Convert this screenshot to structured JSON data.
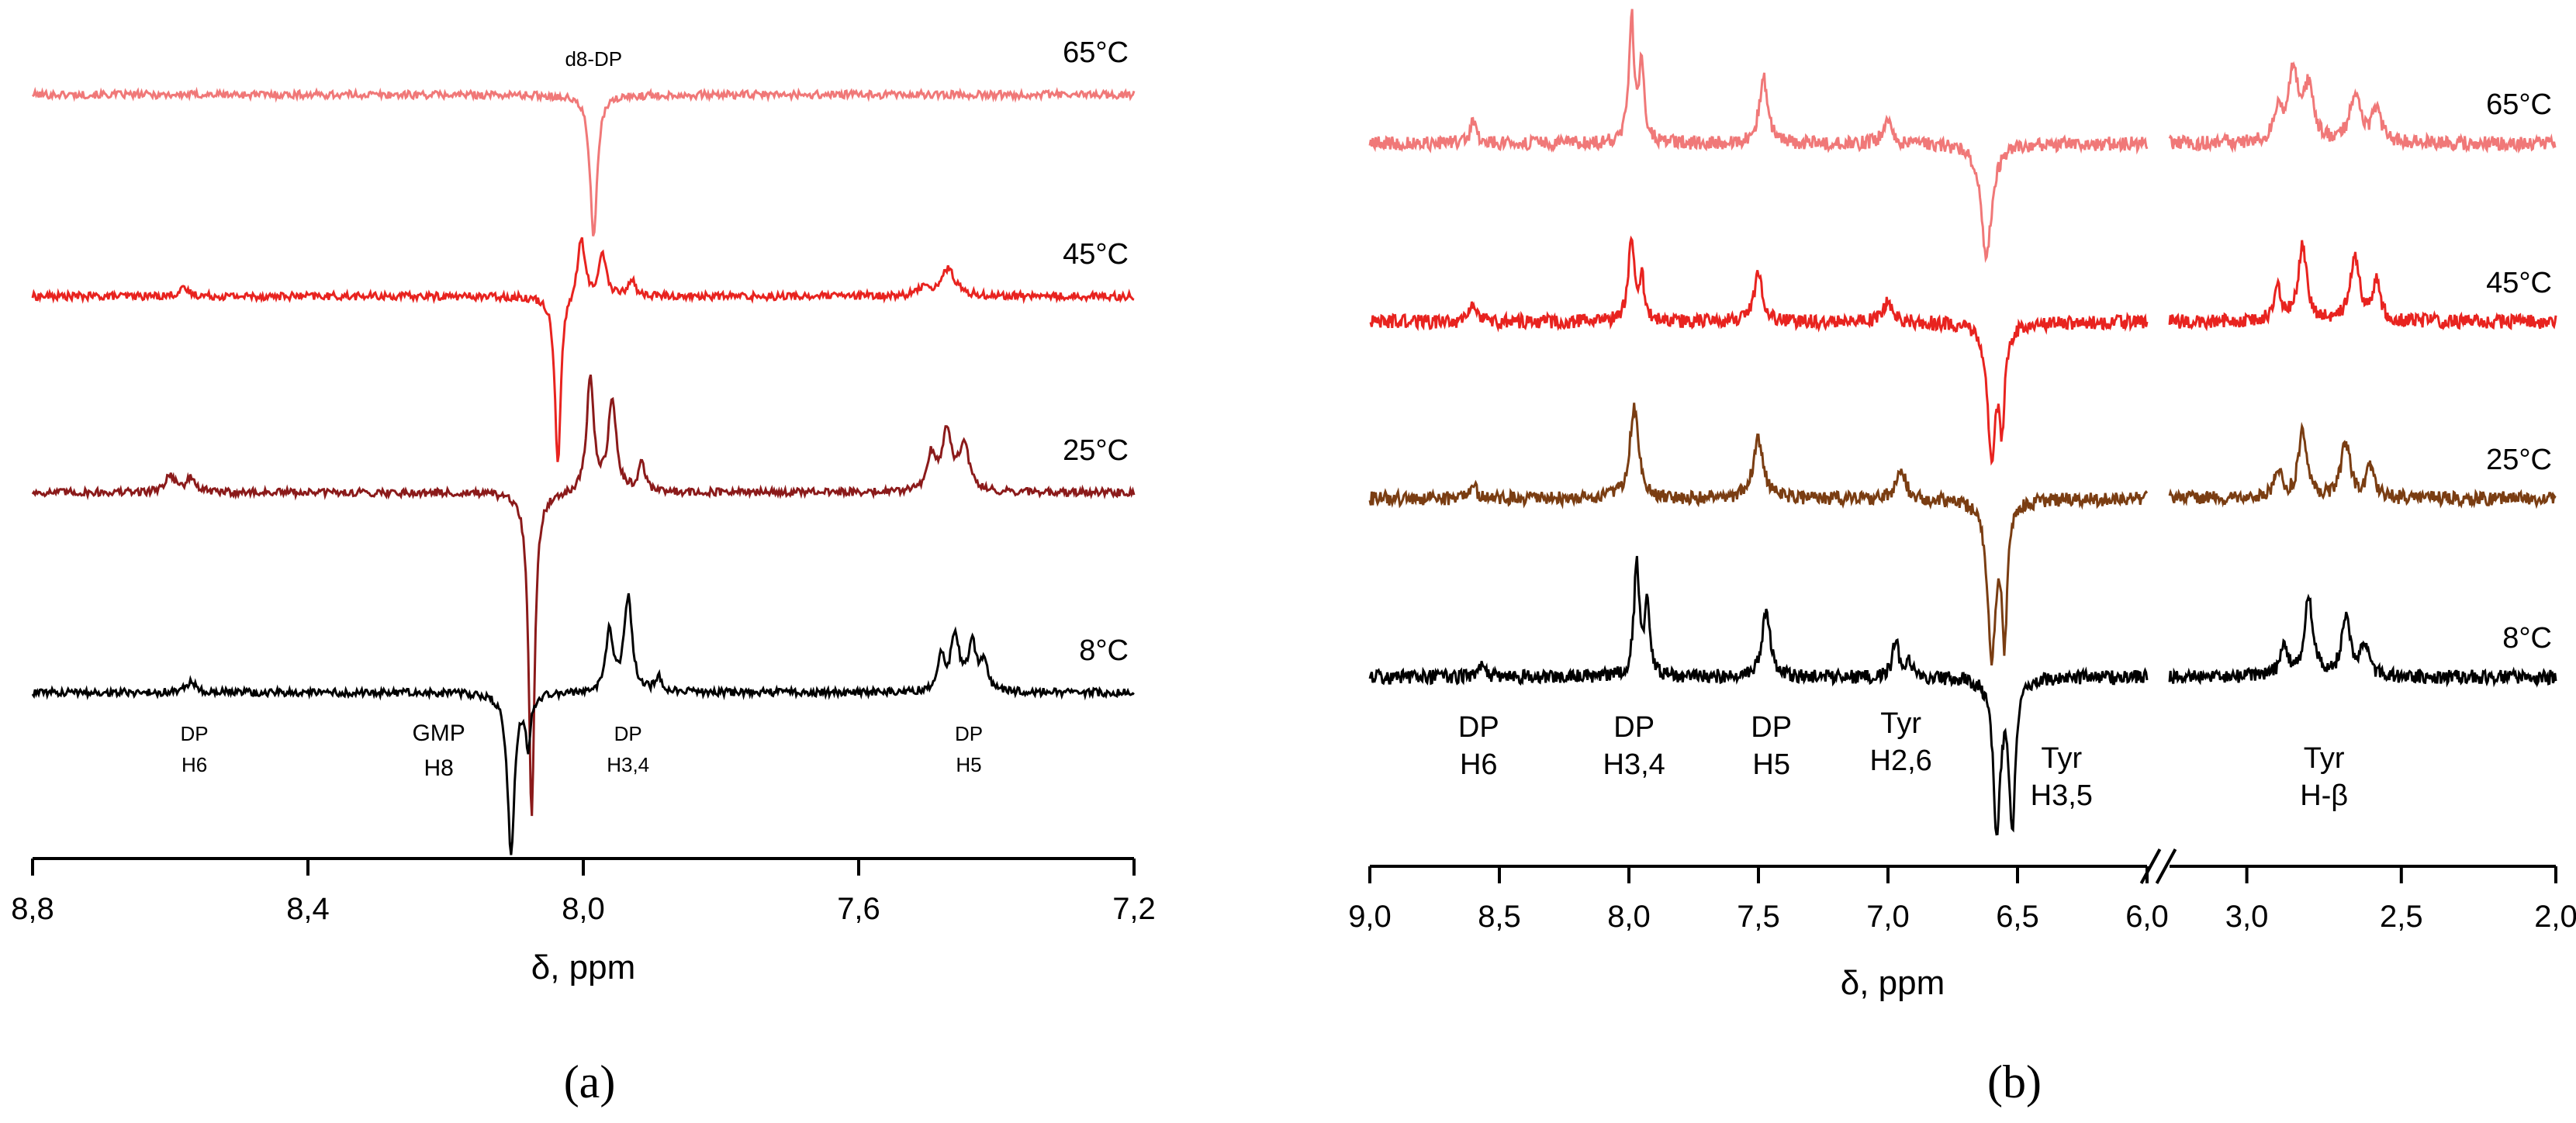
{
  "chart_data": [
    {
      "panel": "(a)",
      "type": "line",
      "xlabel": "δ, ppm",
      "xlim": [
        8.8,
        7.2
      ],
      "x_reversed": true,
      "xticks": [
        8.8,
        8.4,
        8.0,
        7.6,
        7.2
      ],
      "xtick_labels": [
        "8,8",
        "8,4",
        "8,0",
        "7,6",
        "7,2"
      ],
      "grid": false,
      "series": [
        {
          "name": "65°C",
          "color": "#f07878",
          "peaks": [
            {
              "x": 7.985,
              "amp": -0.85,
              "w": 0.006
            }
          ]
        },
        {
          "name": "45°C",
          "color": "#e8231f",
          "peaks": [
            {
              "x": 8.003,
              "amp": 0.36,
              "w": 0.006
            },
            {
              "x": 7.972,
              "amp": 0.26,
              "w": 0.006
            },
            {
              "x": 7.93,
              "amp": 0.1,
              "w": 0.006
            },
            {
              "x": 8.037,
              "amp": -1.0,
              "w": 0.005
            },
            {
              "x": 7.47,
              "amp": 0.16,
              "w": 0.012
            },
            {
              "x": 7.505,
              "amp": 0.06,
              "w": 0.008
            },
            {
              "x": 8.58,
              "amp": 0.04,
              "w": 0.01
            }
          ]
        },
        {
          "name": "25°C",
          "color": "#8b1a1a",
          "peaks": [
            {
              "x": 7.99,
              "amp": 0.68,
              "w": 0.006
            },
            {
              "x": 7.958,
              "amp": 0.54,
              "w": 0.007
            },
            {
              "x": 7.915,
              "amp": 0.16,
              "w": 0.006
            },
            {
              "x": 8.075,
              "amp": -1.9,
              "w": 0.005
            },
            {
              "x": 7.472,
              "amp": 0.34,
              "w": 0.009
            },
            {
              "x": 7.447,
              "amp": 0.28,
              "w": 0.008
            },
            {
              "x": 7.495,
              "amp": 0.2,
              "w": 0.007
            },
            {
              "x": 8.6,
              "amp": 0.1,
              "w": 0.009
            },
            {
              "x": 8.57,
              "amp": 0.08,
              "w": 0.008
            }
          ]
        },
        {
          "name": "8°C",
          "color": "#000000",
          "peaks": [
            {
              "x": 7.935,
              "amp": 0.55,
              "w": 0.007
            },
            {
              "x": 7.962,
              "amp": 0.36,
              "w": 0.006
            },
            {
              "x": 7.89,
              "amp": 0.08,
              "w": 0.006
            },
            {
              "x": 8.105,
              "amp": -0.95,
              "w": 0.006
            },
            {
              "x": 8.08,
              "amp": -0.3,
              "w": 0.004
            },
            {
              "x": 7.46,
              "amp": 0.34,
              "w": 0.007
            },
            {
              "x": 7.435,
              "amp": 0.28,
              "w": 0.007
            },
            {
              "x": 7.418,
              "amp": 0.16,
              "w": 0.006
            },
            {
              "x": 7.48,
              "amp": 0.2,
              "w": 0.006
            },
            {
              "x": 8.57,
              "amp": 0.06,
              "w": 0.01
            }
          ]
        }
      ],
      "annotations": [
        {
          "lines": [
            "d8-DP"
          ],
          "x": 7.985
        },
        {
          "lines": [
            "DP",
            "H6"
          ],
          "x": 8.565
        },
        {
          "lines": [
            "GMP",
            "H8"
          ],
          "x": 8.21
        },
        {
          "lines": [
            "DP",
            "H3,4"
          ],
          "x": 7.935
        },
        {
          "lines": [
            "DP",
            "H5"
          ],
          "x": 7.44
        }
      ]
    },
    {
      "panel": "(b)",
      "type": "line",
      "xlabel": "δ, ppm",
      "x_broken": true,
      "x_segments": [
        [
          9.0,
          6.0
        ],
        [
          3.25,
          2.0
        ]
      ],
      "xticks": [
        9.0,
        8.5,
        8.0,
        7.5,
        7.0,
        6.5,
        6.0,
        3.0,
        2.5,
        2.0
      ],
      "xtick_labels": [
        "9,0",
        "8,5",
        "8,0",
        "7,5",
        "7,0",
        "6,5",
        "6,0",
        "3,0",
        "2,5",
        "2,0"
      ],
      "grid": false,
      "series": [
        {
          "name": "65°C",
          "color": "#f07878",
          "peaks": [
            {
              "x": 7.99,
              "amp": 0.82,
              "w": 0.012
            },
            {
              "x": 7.95,
              "amp": 0.5,
              "w": 0.012
            },
            {
              "x": 7.48,
              "amp": 0.42,
              "w": 0.02
            },
            {
              "x": 7.0,
              "amp": 0.16,
              "w": 0.02
            },
            {
              "x": 8.6,
              "amp": 0.14,
              "w": 0.015
            },
            {
              "x": 6.62,
              "amp": -0.72,
              "w": 0.025
            },
            {
              "x": 2.85,
              "amp": 0.44,
              "w": 0.02
            },
            {
              "x": 2.8,
              "amp": 0.34,
              "w": 0.018
            },
            {
              "x": 2.65,
              "amp": 0.32,
              "w": 0.02
            },
            {
              "x": 2.58,
              "amp": 0.2,
              "w": 0.018
            },
            {
              "x": 2.9,
              "amp": 0.2,
              "w": 0.015
            }
          ]
        },
        {
          "name": "45°C",
          "color": "#e8231f",
          "peaks": [
            {
              "x": 7.99,
              "amp": 0.56,
              "w": 0.014
            },
            {
              "x": 7.95,
              "amp": 0.26,
              "w": 0.012
            },
            {
              "x": 7.5,
              "amp": 0.3,
              "w": 0.02
            },
            {
              "x": 7.0,
              "amp": 0.14,
              "w": 0.02
            },
            {
              "x": 8.6,
              "amp": 0.12,
              "w": 0.015
            },
            {
              "x": 6.6,
              "amp": -0.82,
              "w": 0.02
            },
            {
              "x": 6.56,
              "amp": -0.6,
              "w": 0.012
            },
            {
              "x": 2.82,
              "amp": 0.5,
              "w": 0.016
            },
            {
              "x": 2.65,
              "amp": 0.42,
              "w": 0.018
            },
            {
              "x": 2.58,
              "amp": 0.24,
              "w": 0.015
            },
            {
              "x": 2.9,
              "amp": 0.2,
              "w": 0.015
            }
          ]
        },
        {
          "name": "25°C",
          "color": "#7a3d12",
          "peaks": [
            {
              "x": 7.98,
              "amp": 0.6,
              "w": 0.02
            },
            {
              "x": 7.5,
              "amp": 0.38,
              "w": 0.024
            },
            {
              "x": 6.95,
              "amp": 0.2,
              "w": 0.02
            },
            {
              "x": 8.6,
              "amp": 0.08,
              "w": 0.015
            },
            {
              "x": 6.6,
              "amp": -1.0,
              "w": 0.02
            },
            {
              "x": 6.55,
              "amp": -0.84,
              "w": 0.012
            },
            {
              "x": 2.82,
              "amp": 0.42,
              "w": 0.016
            },
            {
              "x": 2.68,
              "amp": 0.36,
              "w": 0.018
            },
            {
              "x": 2.6,
              "amp": 0.2,
              "w": 0.015
            },
            {
              "x": 2.9,
              "amp": 0.18,
              "w": 0.015
            }
          ]
        },
        {
          "name": "8°C",
          "color": "#000000",
          "peaks": [
            {
              "x": 7.97,
              "amp": 0.74,
              "w": 0.012
            },
            {
              "x": 7.93,
              "amp": 0.46,
              "w": 0.012
            },
            {
              "x": 7.47,
              "amp": 0.44,
              "w": 0.018
            },
            {
              "x": 6.97,
              "amp": 0.24,
              "w": 0.014
            },
            {
              "x": 6.92,
              "amp": 0.12,
              "w": 0.012
            },
            {
              "x": 8.57,
              "amp": 0.08,
              "w": 0.015
            },
            {
              "x": 6.58,
              "amp": -1.0,
              "w": 0.016
            },
            {
              "x": 6.52,
              "amp": -0.95,
              "w": 0.014
            },
            {
              "x": 2.8,
              "amp": 0.52,
              "w": 0.016
            },
            {
              "x": 2.68,
              "amp": 0.38,
              "w": 0.016
            },
            {
              "x": 2.62,
              "amp": 0.22,
              "w": 0.014
            },
            {
              "x": 2.88,
              "amp": 0.2,
              "w": 0.014
            }
          ]
        }
      ],
      "annotations": [
        {
          "lines": [
            "DP",
            "H6"
          ],
          "x": 8.58
        },
        {
          "lines": [
            "DP",
            "H3,4"
          ],
          "x": 7.98
        },
        {
          "lines": [
            "DP",
            "H5"
          ],
          "x": 7.45
        },
        {
          "lines": [
            "Tyr",
            "H2,6"
          ],
          "x": 6.95
        },
        {
          "lines": [
            "Tyr",
            "H3,5"
          ],
          "x": 6.33
        },
        {
          "lines": [
            "Tyr",
            "H-β"
          ],
          "x": 2.75
        }
      ]
    }
  ]
}
